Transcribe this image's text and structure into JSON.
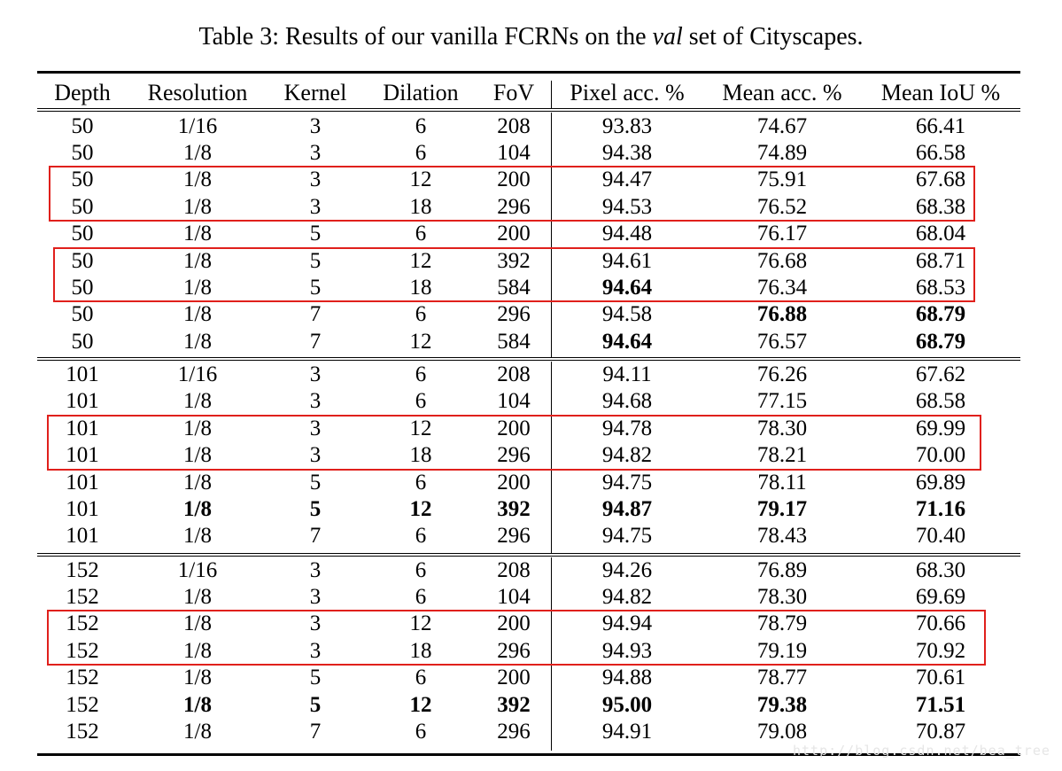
{
  "caption": {
    "prefix": "Table 3: Results of our vanilla FCRNs on the ",
    "italic": "val",
    "suffix": " set of Cityscapes."
  },
  "columns": [
    "Depth",
    "Resolution",
    "Kernel",
    "Dilation",
    "FoV",
    "Pixel acc. %",
    "Mean acc. %",
    "Mean IoU %"
  ],
  "groups": [
    {
      "rows": [
        {
          "cells": [
            "50",
            "1/16",
            "3",
            "6",
            "208",
            "93.83",
            "74.67",
            "66.41"
          ],
          "bold": []
        },
        {
          "cells": [
            "50",
            "1/8",
            "3",
            "6",
            "104",
            "94.38",
            "74.89",
            "66.58"
          ],
          "bold": []
        },
        {
          "cells": [
            "50",
            "1/8",
            "3",
            "12",
            "200",
            "94.47",
            "75.91",
            "67.68"
          ],
          "bold": []
        },
        {
          "cells": [
            "50",
            "1/8",
            "3",
            "18",
            "296",
            "94.53",
            "76.52",
            "68.38"
          ],
          "bold": []
        },
        {
          "cells": [
            "50",
            "1/8",
            "5",
            "6",
            "200",
            "94.48",
            "76.17",
            "68.04"
          ],
          "bold": []
        },
        {
          "cells": [
            "50",
            "1/8",
            "5",
            "12",
            "392",
            "94.61",
            "76.68",
            "68.71"
          ],
          "bold": []
        },
        {
          "cells": [
            "50",
            "1/8",
            "5",
            "18",
            "584",
            "94.64",
            "76.34",
            "68.53"
          ],
          "bold": [
            5
          ]
        },
        {
          "cells": [
            "50",
            "1/8",
            "7",
            "6",
            "296",
            "94.58",
            "76.88",
            "68.79"
          ],
          "bold": [
            6,
            7
          ]
        },
        {
          "cells": [
            "50",
            "1/8",
            "7",
            "12",
            "584",
            "94.64",
            "76.57",
            "68.79"
          ],
          "bold": [
            5,
            7
          ]
        }
      ]
    },
    {
      "rows": [
        {
          "cells": [
            "101",
            "1/16",
            "3",
            "6",
            "208",
            "94.11",
            "76.26",
            "67.62"
          ],
          "bold": []
        },
        {
          "cells": [
            "101",
            "1/8",
            "3",
            "6",
            "104",
            "94.68",
            "77.15",
            "68.58"
          ],
          "bold": []
        },
        {
          "cells": [
            "101",
            "1/8",
            "3",
            "12",
            "200",
            "94.78",
            "78.30",
            "69.99"
          ],
          "bold": []
        },
        {
          "cells": [
            "101",
            "1/8",
            "3",
            "18",
            "296",
            "94.82",
            "78.21",
            "70.00"
          ],
          "bold": []
        },
        {
          "cells": [
            "101",
            "1/8",
            "5",
            "6",
            "200",
            "94.75",
            "78.11",
            "69.89"
          ],
          "bold": []
        },
        {
          "cells": [
            "101",
            "1/8",
            "5",
            "12",
            "392",
            "94.87",
            "79.17",
            "71.16"
          ],
          "bold": [
            1,
            2,
            3,
            4,
            5,
            6,
            7
          ]
        },
        {
          "cells": [
            "101",
            "1/8",
            "7",
            "6",
            "296",
            "94.75",
            "78.43",
            "70.40"
          ],
          "bold": []
        }
      ]
    },
    {
      "rows": [
        {
          "cells": [
            "152",
            "1/16",
            "3",
            "6",
            "208",
            "94.26",
            "76.89",
            "68.30"
          ],
          "bold": []
        },
        {
          "cells": [
            "152",
            "1/8",
            "3",
            "6",
            "104",
            "94.82",
            "78.30",
            "69.69"
          ],
          "bold": []
        },
        {
          "cells": [
            "152",
            "1/8",
            "3",
            "12",
            "200",
            "94.94",
            "78.79",
            "70.66"
          ],
          "bold": []
        },
        {
          "cells": [
            "152",
            "1/8",
            "3",
            "18",
            "296",
            "94.93",
            "79.19",
            "70.92"
          ],
          "bold": []
        },
        {
          "cells": [
            "152",
            "1/8",
            "5",
            "6",
            "200",
            "94.88",
            "78.77",
            "70.61"
          ],
          "bold": []
        },
        {
          "cells": [
            "152",
            "1/8",
            "5",
            "12",
            "392",
            "95.00",
            "79.38",
            "71.51"
          ],
          "bold": [
            1,
            2,
            3,
            4,
            5,
            6,
            7
          ]
        },
        {
          "cells": [
            "152",
            "1/8",
            "7",
            "6",
            "296",
            "94.91",
            "79.08",
            "70.87"
          ],
          "bold": []
        }
      ]
    }
  ],
  "highlights": [
    {
      "group": 0,
      "rows": [
        2,
        3
      ]
    },
    {
      "group": 0,
      "rows": [
        5,
        6
      ]
    },
    {
      "group": 1,
      "rows": [
        2,
        3
      ]
    },
    {
      "group": 2,
      "rows": [
        2,
        3
      ]
    }
  ],
  "highlight_color": "#e0201c",
  "watermark": "http://blog.csdn.net/bea_tree"
}
